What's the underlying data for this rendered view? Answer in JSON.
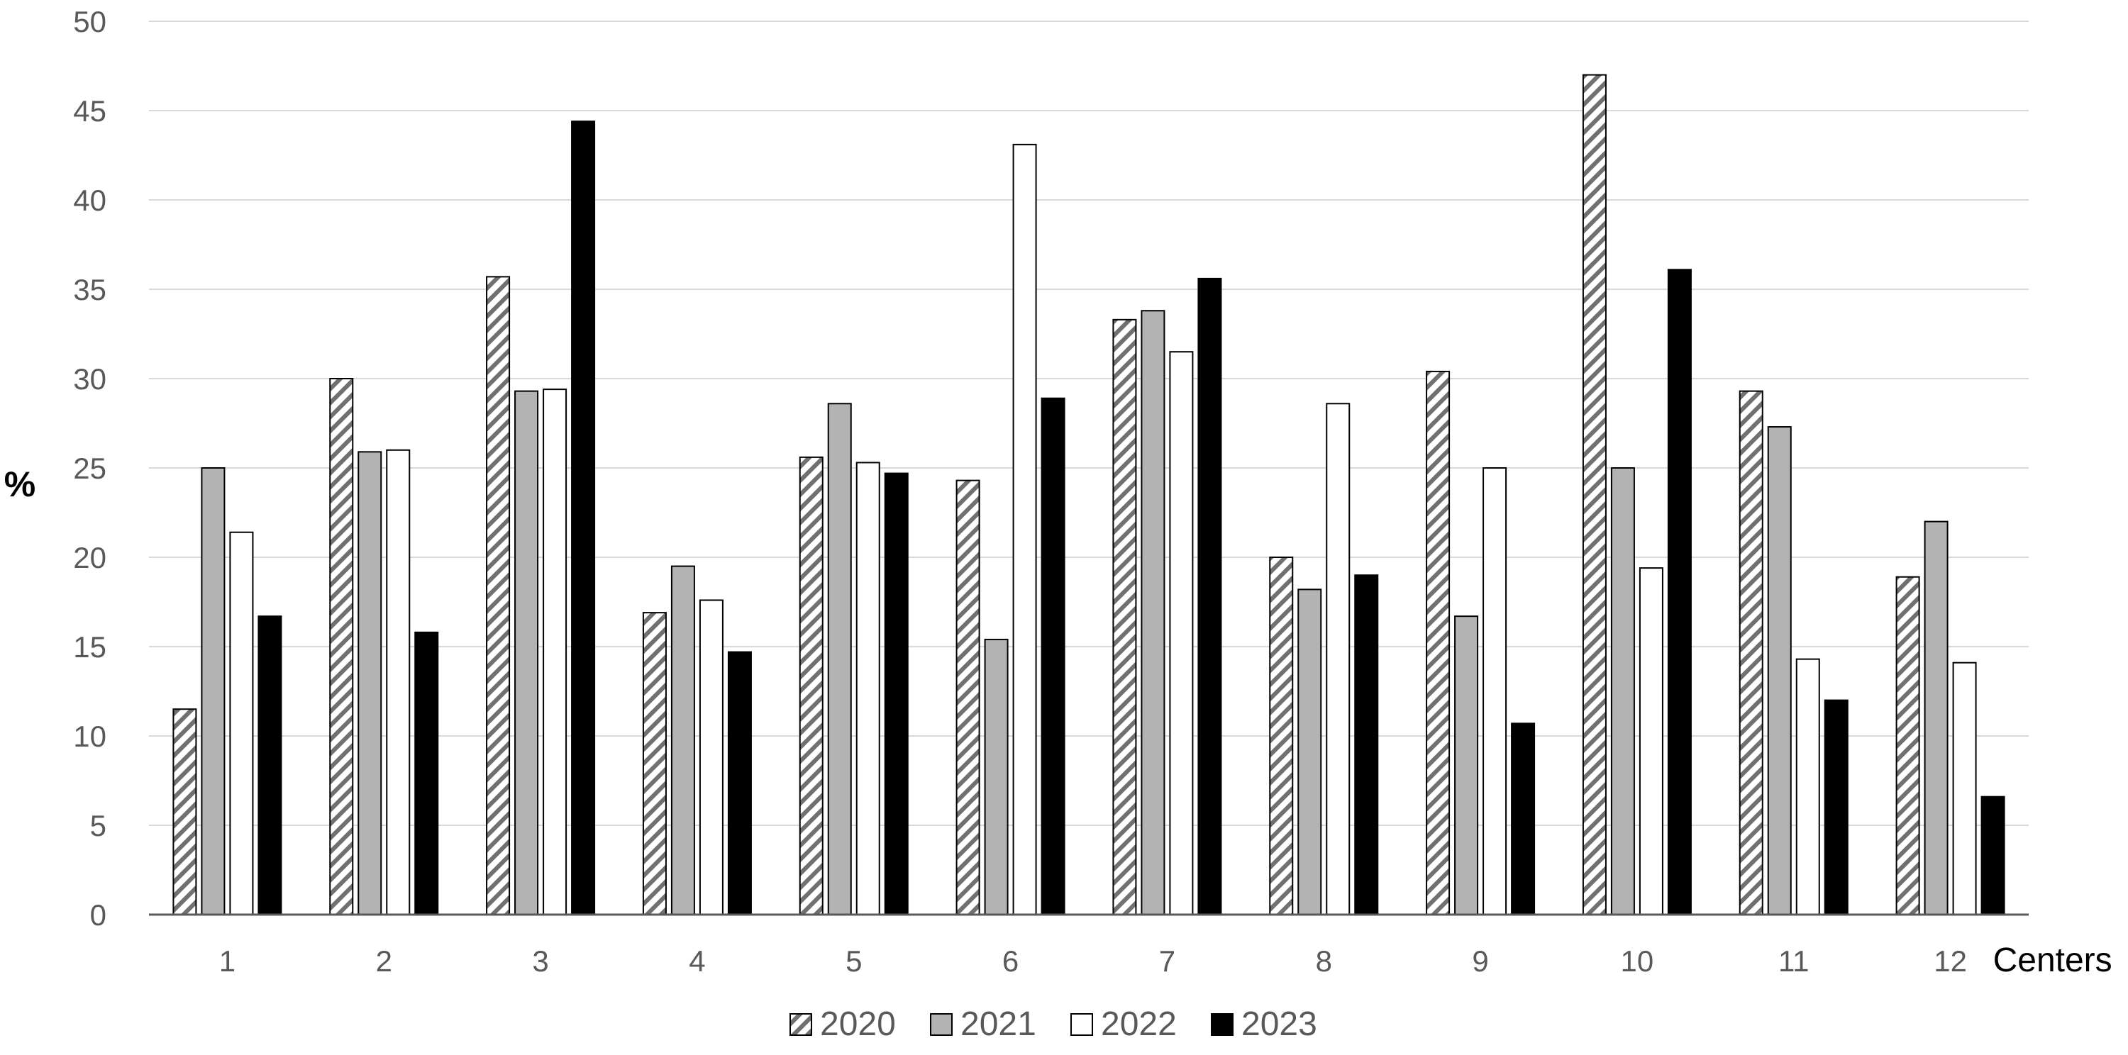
{
  "chart_data": {
    "type": "bar",
    "ylabel": "%",
    "xlabel": "Centers",
    "ylim": [
      0,
      50
    ],
    "yticks": [
      0,
      5,
      10,
      15,
      20,
      25,
      30,
      35,
      40,
      45,
      50
    ],
    "grid": true,
    "legend_position": "bottom",
    "categories": [
      "1",
      "2",
      "3",
      "4",
      "5",
      "6",
      "7",
      "8",
      "9",
      "10",
      "11",
      "12"
    ],
    "series": [
      {
        "name": "2020",
        "fill": "hatch",
        "color": "#ffffff",
        "values": [
          11.5,
          30.0,
          35.7,
          16.9,
          25.6,
          24.3,
          33.3,
          20.0,
          30.4,
          47.0,
          29.3,
          18.9
        ]
      },
      {
        "name": "2021",
        "fill": "solid",
        "color": "#b3b3b3",
        "values": [
          25.0,
          25.9,
          29.3,
          19.5,
          28.6,
          15.4,
          33.8,
          18.2,
          16.7,
          25.0,
          27.3,
          22.0
        ]
      },
      {
        "name": "2022",
        "fill": "solid",
        "color": "#ffffff",
        "values": [
          21.4,
          26.0,
          29.4,
          17.6,
          25.3,
          43.1,
          31.5,
          28.6,
          25.0,
          19.4,
          14.3,
          14.1
        ]
      },
      {
        "name": "2023",
        "fill": "solid",
        "color": "#000000",
        "values": [
          16.7,
          15.8,
          44.4,
          14.7,
          24.7,
          28.9,
          35.6,
          19.0,
          10.7,
          36.1,
          12.0,
          6.6
        ]
      }
    ]
  }
}
